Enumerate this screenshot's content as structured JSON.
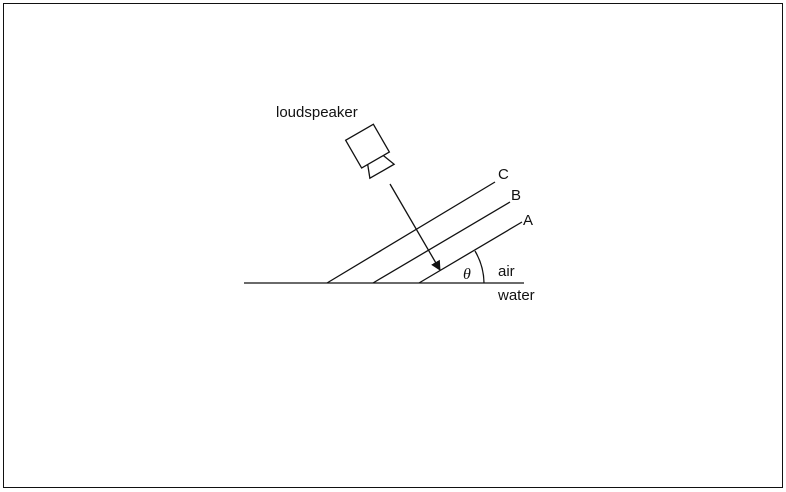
{
  "labels": {
    "loudspeaker": "loudspeaker",
    "wavefront_c": "C",
    "wavefront_b": "B",
    "wavefront_a": "A",
    "angle": "θ",
    "upper_medium": "air",
    "lower_medium": "water"
  }
}
